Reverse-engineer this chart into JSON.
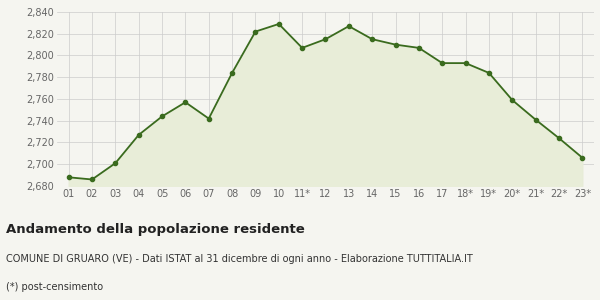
{
  "labels": [
    "01",
    "02",
    "03",
    "04",
    "05",
    "06",
    "07",
    "08",
    "09",
    "10",
    "11*",
    "12",
    "13",
    "14",
    "15",
    "16",
    "17",
    "18*",
    "19*",
    "20*",
    "21*",
    "22*",
    "23*"
  ],
  "values": [
    2688,
    2686,
    2701,
    2727,
    2744,
    2757,
    2742,
    2784,
    2822,
    2829,
    2807,
    2815,
    2827,
    2815,
    2810,
    2807,
    2793,
    2793,
    2784,
    2759,
    2741,
    2724,
    2706
  ],
  "ylim": [
    2680,
    2840
  ],
  "yticks": [
    2680,
    2700,
    2720,
    2740,
    2760,
    2780,
    2800,
    2820,
    2840
  ],
  "line_color": "#3a6b1e",
  "fill_color": "#e8edd8",
  "marker": "o",
  "marker_size": 3,
  "line_width": 1.3,
  "bg_color": "#f5f5f0",
  "grid_color": "#cccccc",
  "title": "Andamento della popolazione residente",
  "subtitle": "COMUNE DI GRUARO (VE) - Dati ISTAT al 31 dicembre di ogni anno - Elaborazione TUTTITALIA.IT",
  "footnote": "(*) post-censimento",
  "title_fontsize": 9.5,
  "subtitle_fontsize": 7,
  "footnote_fontsize": 7,
  "tick_fontsize": 7,
  "axis_label_color": "#666666"
}
